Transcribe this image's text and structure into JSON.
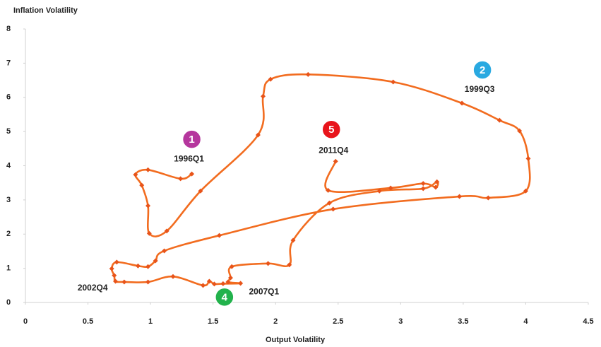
{
  "chart_data": {
    "type": "line",
    "title": "Inflation Volatility",
    "x_label": "Output Volatility",
    "color": "#f26c1f",
    "x": [
      1.33,
      1.24,
      0.98,
      0.88,
      0.93,
      0.98,
      0.99,
      1.13,
      1.4,
      1.86,
      1.9,
      1.96,
      2.26,
      2.94,
      3.49,
      3.79,
      3.95,
      4.02,
      4.0,
      3.7,
      3.47,
      2.46,
      1.55,
      1.11,
      1.04,
      0.98,
      0.9,
      0.73,
      0.69,
      0.71,
      0.72,
      0.79,
      0.98,
      1.18,
      1.42,
      1.47,
      1.51,
      1.58,
      1.72,
      1.62,
      1.64,
      1.65,
      1.94,
      2.11,
      2.14,
      2.43,
      2.83,
      3.18,
      3.29,
      3.28,
      3.18,
      2.92,
      2.42,
      2.48
    ],
    "values": [
      3.76,
      3.62,
      3.88,
      3.74,
      3.43,
      2.83,
      2.02,
      2.09,
      3.26,
      4.9,
      6.03,
      6.53,
      6.67,
      6.45,
      5.83,
      5.33,
      5.02,
      4.21,
      3.26,
      3.06,
      3.1,
      2.73,
      1.96,
      1.51,
      1.22,
      1.05,
      1.07,
      1.18,
      0.99,
      0.79,
      0.62,
      0.6,
      0.6,
      0.76,
      0.5,
      0.62,
      0.54,
      0.55,
      0.56,
      0.6,
      0.72,
      1.05,
      1.14,
      1.1,
      1.82,
      2.91,
      3.26,
      3.33,
      3.53,
      3.37,
      3.48,
      3.35,
      3.28,
      4.13
    ],
    "xlim": [
      0,
      4.5
    ],
    "xticks": [
      0,
      0.5,
      1,
      1.5,
      2,
      2.5,
      3,
      3.5,
      4,
      4.5
    ],
    "ylim": [
      0,
      8
    ],
    "yticks": [
      0,
      1,
      2,
      3,
      4,
      5,
      6,
      7,
      8
    ],
    "annotations": [
      {
        "text": "1996Q1",
        "marker": "1",
        "color": "#b5369d",
        "x": 1.33,
        "y": 3.76
      },
      {
        "text": "1999Q3",
        "marker": "2",
        "color": "#29a9e1",
        "x": 3.49,
        "y": 5.83
      },
      {
        "text": "2002Q4",
        "x": 0.72,
        "y": 0.62
      },
      {
        "text": "2007Q1",
        "marker": "4",
        "color": "#22b24c",
        "x": 1.58,
        "y": 0.55
      },
      {
        "text": "2011Q4",
        "marker": "5",
        "color": "#e8141b",
        "x": 2.48,
        "y": 4.13
      }
    ]
  }
}
